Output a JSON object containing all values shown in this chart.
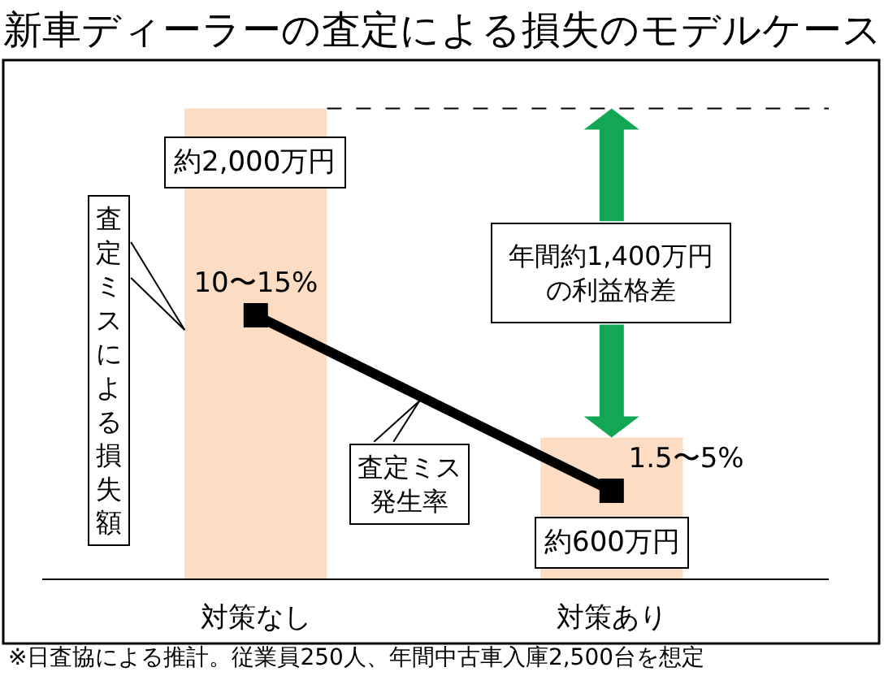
{
  "chart_data": {
    "type": "bar",
    "title": "新車ディーラーの査定による損失のモデルケース",
    "categories": [
      "対策なし",
      "対策あり"
    ],
    "series": [
      {
        "name": "査定ミスによる損失額",
        "color": "#fcdcc3",
        "values": [
          2000,
          600
        ],
        "value_labels": [
          "約2,000万円",
          "約600万円"
        ]
      },
      {
        "name": "査定ミス発生率",
        "type": "line",
        "axis": "y2",
        "color": "#000000",
        "values": [
          15,
          5
        ],
        "value_labels": [
          "10〜15%",
          "1.5〜5%"
        ]
      }
    ],
    "tick_labels": "x",
    "marker": "square",
    "line_style": "solid",
    "ref_lines": [
      {
        "axis": "y",
        "value": 2000,
        "line_style": "dashed",
        "color": "#000000"
      }
    ],
    "annotations": [
      "年間約1,400万円の利益格差",
      "※日査協による推計。従業員250人、年間中古車入庫2,500台を想定"
    ]
  }
}
